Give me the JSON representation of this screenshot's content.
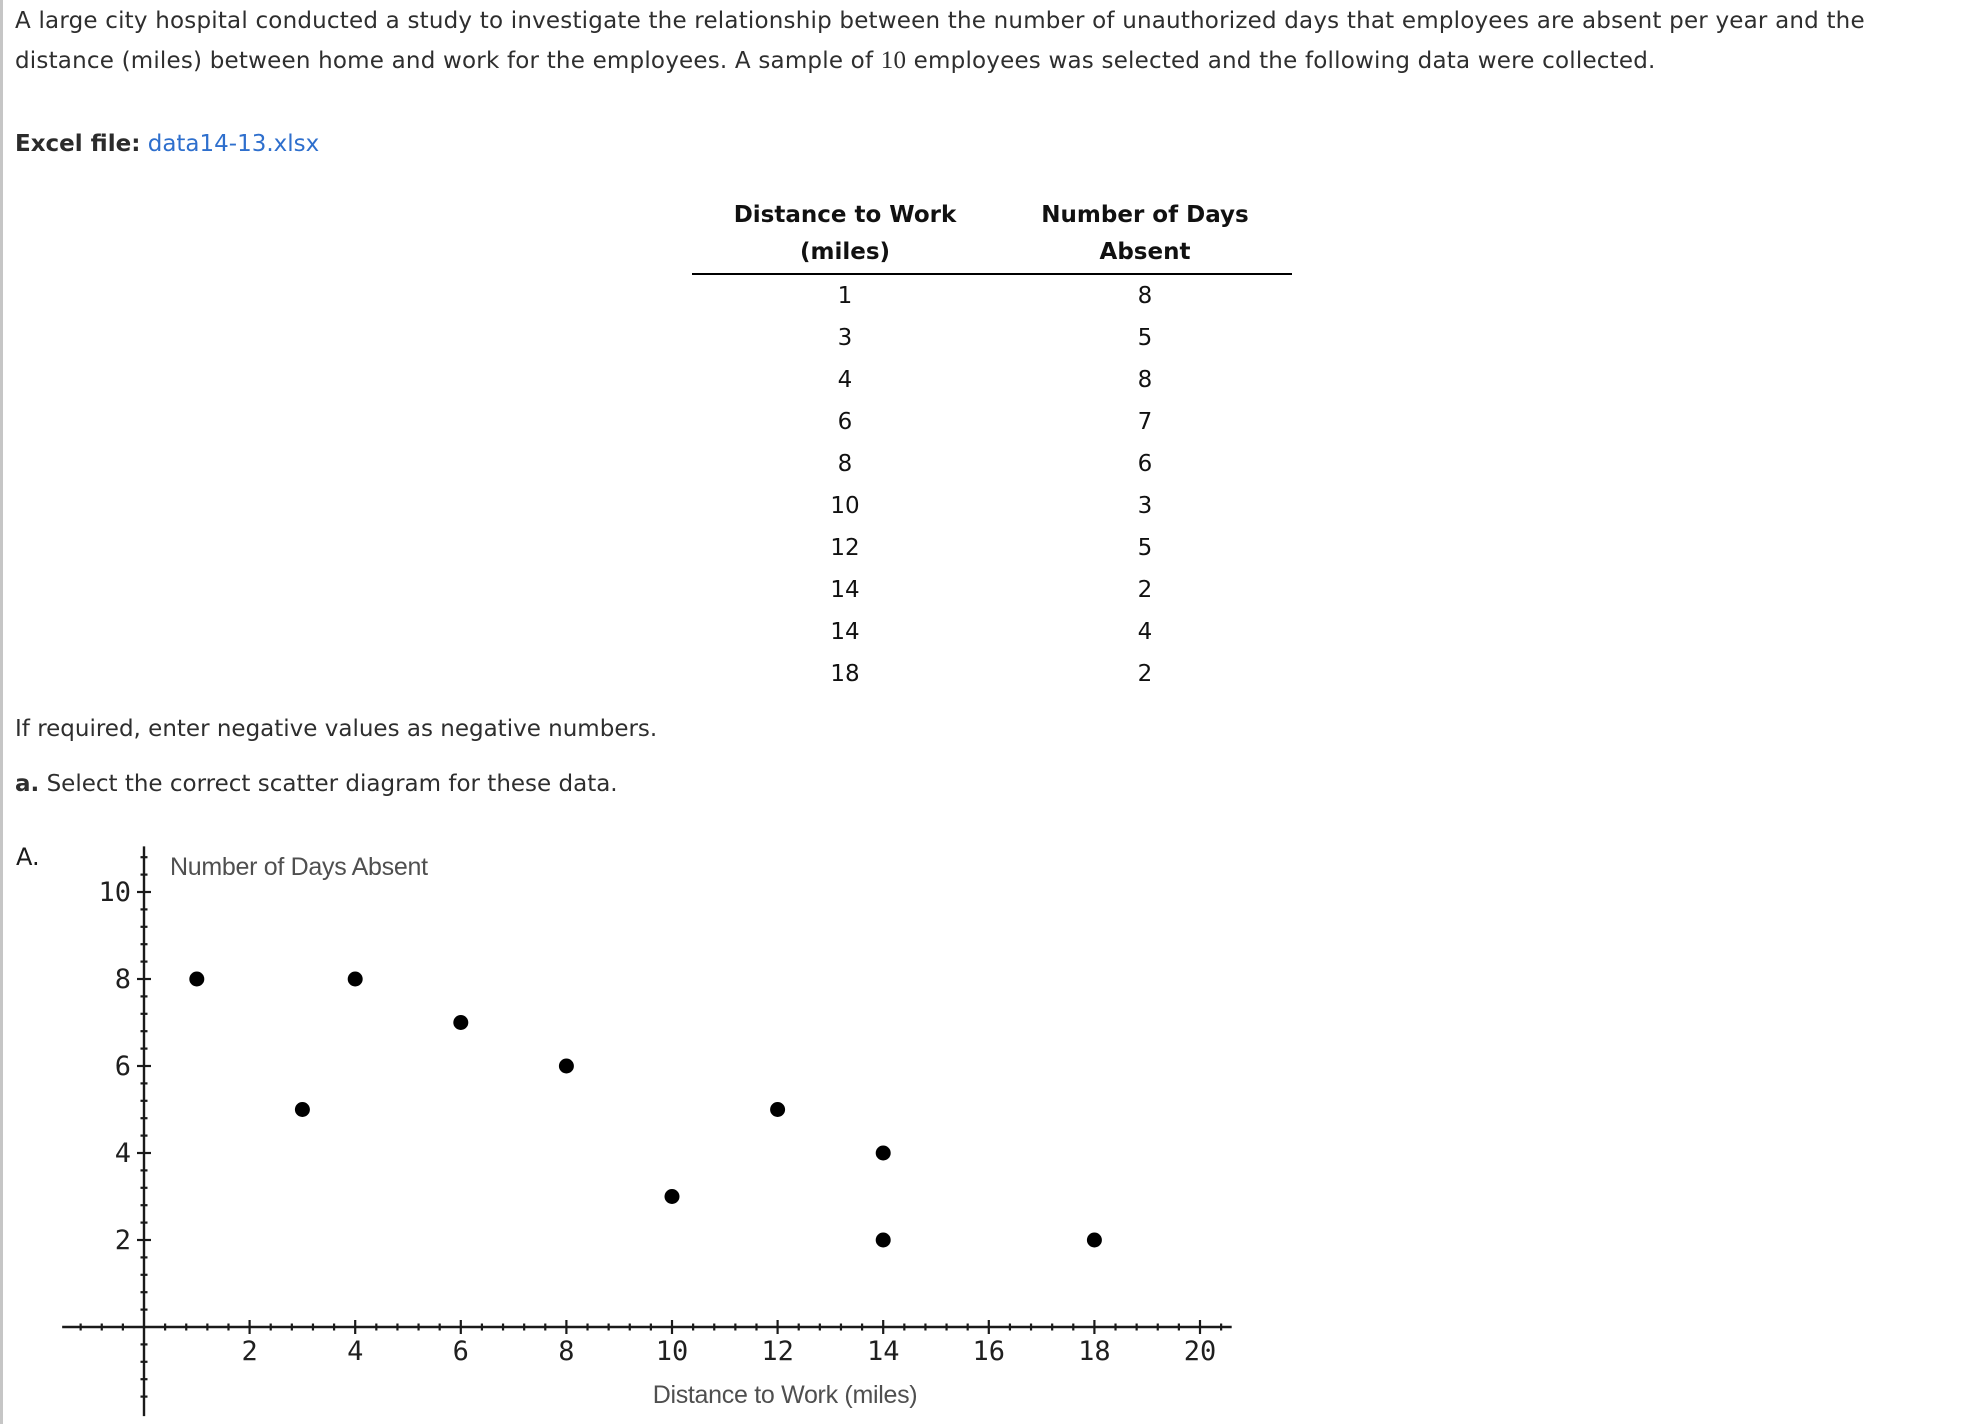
{
  "page": {
    "paragraph": {
      "line1": "A large city hospital conducted a study to investigate the relationship between the number of unauthorized days that employees are absent per year and the",
      "line2a": "distance (miles) between home and work for the employees. A sample of ",
      "sample_n": "10",
      "line2b": " employees was selected and the following data were collected."
    },
    "excel_label": "Excel file:",
    "excel_link": "data14-13.xlsx",
    "note": "If required, enter negative values as negative numbers.",
    "question_label": "a.",
    "question_text": " Select the correct scatter diagram for these data.",
    "option_label": "A."
  },
  "table": {
    "col1_header": [
      "Distance to Work",
      "(miles)"
    ],
    "col2_header": [
      "Number of Days",
      "Absent"
    ],
    "rows": [
      {
        "distance": "1",
        "days": "8"
      },
      {
        "distance": "3",
        "days": "5"
      },
      {
        "distance": "4",
        "days": "8"
      },
      {
        "distance": "6",
        "days": "7"
      },
      {
        "distance": "8",
        "days": "6"
      },
      {
        "distance": "10",
        "days": "3"
      },
      {
        "distance": "12",
        "days": "5"
      },
      {
        "distance": "14",
        "days": "2"
      },
      {
        "distance": "14",
        "days": "4"
      },
      {
        "distance": "18",
        "days": "2"
      }
    ]
  },
  "chart_data": {
    "type": "scatter",
    "title": "Number of Days Absent",
    "xlabel": "Distance to Work (miles)",
    "points": [
      [
        1,
        8
      ],
      [
        3,
        5
      ],
      [
        4,
        8
      ],
      [
        6,
        7
      ],
      [
        8,
        6
      ],
      [
        10,
        3
      ],
      [
        12,
        5
      ],
      [
        14,
        2
      ],
      [
        14,
        4
      ],
      [
        18,
        2
      ]
    ],
    "x_ticks": [
      2,
      4,
      6,
      8,
      10,
      12,
      14,
      16,
      18,
      20
    ],
    "y_ticks": [
      2,
      4,
      6,
      8,
      10
    ],
    "xlim": [
      -1.55,
      20.6
    ],
    "ylim": [
      -2.05,
      11.05
    ],
    "minor_tick_step": 0.4,
    "grid": false,
    "legend": "none",
    "colors": {
      "point": "#000000",
      "axis": "#1a1a1a",
      "tick_label": "#1f1f1f",
      "axis_label": "#4f4f4f"
    }
  }
}
